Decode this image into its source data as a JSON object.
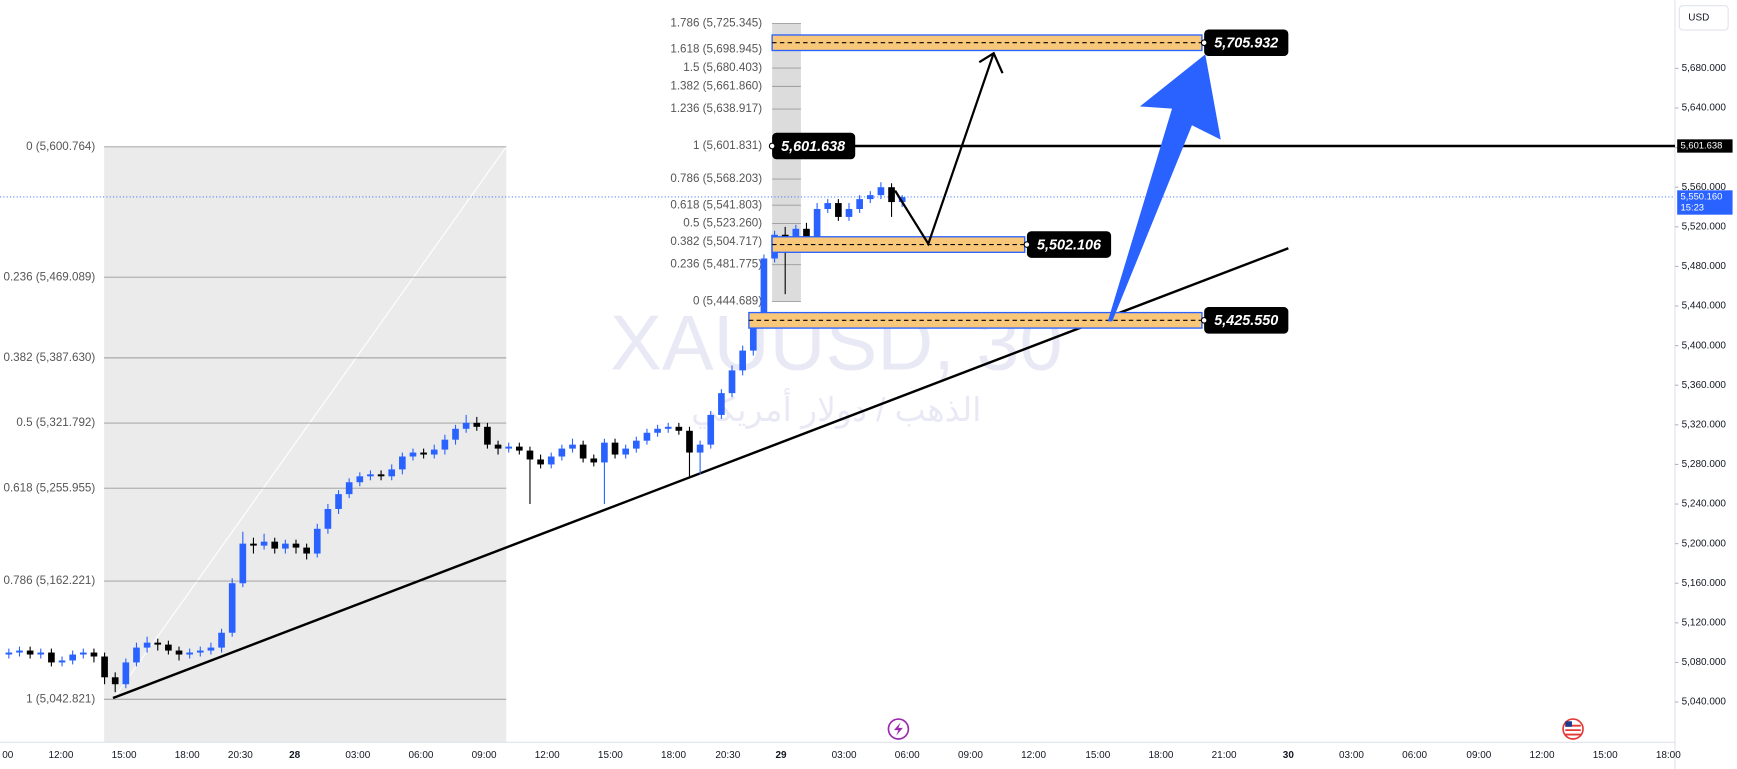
{
  "chart_data": {
    "type": "candlestick",
    "symbol_watermark": "XAUUSD, 30",
    "description_watermark": "الذهب / دولار أمريكي",
    "currency": "USD",
    "colors": {
      "up": "#2962ff",
      "down": "#000000",
      "level_fill": "#f9c77a",
      "level_border": "#2962ff",
      "arrow": "#2962ff"
    },
    "ylim": [
      5000,
      5749
    ],
    "yticks": [
      {
        "value": 5040,
        "label": "5,040.000"
      },
      {
        "value": 5080,
        "label": "5,080.000"
      },
      {
        "value": 5120,
        "label": "5,120.000"
      },
      {
        "value": 5160,
        "label": "5,160.000"
      },
      {
        "value": 5200,
        "label": "5,200.000"
      },
      {
        "value": 5240,
        "label": "5,240.000"
      },
      {
        "value": 5280,
        "label": "5,280.000"
      },
      {
        "value": 5320,
        "label": "5,320.000"
      },
      {
        "value": 5360,
        "label": "5,360.000"
      },
      {
        "value": 5400,
        "label": "5,400.000"
      },
      {
        "value": 5440,
        "label": "5,440.000"
      },
      {
        "value": 5480,
        "label": "5,480.000"
      },
      {
        "value": 5520,
        "label": "5,520.000"
      },
      {
        "value": 5560,
        "label": "5,560.000"
      },
      {
        "value": 5600,
        "label": "5,600.000"
      },
      {
        "value": 5640,
        "label": "5,640.000"
      },
      {
        "value": 5680,
        "label": "5,680.000"
      }
    ],
    "x_tick_labels": [
      "00",
      "12:00",
      "15:00",
      "18:00",
      "20:30",
      "28",
      "03:00",
      "06:00",
      "09:00",
      "12:00",
      "15:00",
      "18:00",
      "20:30",
      "29",
      "03:00",
      "06:00",
      "09:00",
      "12:00",
      "15:00",
      "18:00",
      "21:00",
      "30",
      "03:00",
      "06:00",
      "09:00",
      "12:00",
      "15:00",
      "18:00"
    ],
    "candles": [
      [
        5088,
        5094,
        5084,
        5090
      ],
      [
        5090,
        5096,
        5086,
        5092
      ],
      [
        5092,
        5096,
        5084,
        5088
      ],
      [
        5088,
        5094,
        5084,
        5090
      ],
      [
        5090,
        5094,
        5076,
        5080
      ],
      [
        5080,
        5086,
        5076,
        5082
      ],
      [
        5082,
        5092,
        5078,
        5088
      ],
      [
        5088,
        5094,
        5084,
        5090
      ],
      [
        5090,
        5094,
        5080,
        5086
      ],
      [
        5086,
        5090,
        5058,
        5065
      ],
      [
        5065,
        5070,
        5050,
        5058
      ],
      [
        5058,
        5084,
        5054,
        5080
      ],
      [
        5080,
        5100,
        5076,
        5095
      ],
      [
        5095,
        5106,
        5090,
        5100
      ],
      [
        5100,
        5104,
        5092,
        5098
      ],
      [
        5098,
        5102,
        5088,
        5092
      ],
      [
        5092,
        5096,
        5082,
        5088
      ],
      [
        5088,
        5094,
        5084,
        5090
      ],
      [
        5090,
        5096,
        5086,
        5092
      ],
      [
        5092,
        5100,
        5088,
        5095
      ],
      [
        5095,
        5114,
        5090,
        5110
      ],
      [
        5110,
        5165,
        5106,
        5160
      ],
      [
        5160,
        5212,
        5156,
        5200
      ],
      [
        5200,
        5206,
        5190,
        5198
      ],
      [
        5198,
        5210,
        5194,
        5202
      ],
      [
        5202,
        5206,
        5190,
        5195
      ],
      [
        5195,
        5204,
        5190,
        5200
      ],
      [
        5200,
        5204,
        5190,
        5196
      ],
      [
        5196,
        5200,
        5184,
        5190
      ],
      [
        5190,
        5220,
        5186,
        5215
      ],
      [
        5215,
        5240,
        5210,
        5235
      ],
      [
        5235,
        5254,
        5230,
        5250
      ],
      [
        5250,
        5266,
        5246,
        5262
      ],
      [
        5262,
        5272,
        5258,
        5268
      ],
      [
        5268,
        5274,
        5264,
        5270
      ],
      [
        5270,
        5274,
        5264,
        5268
      ],
      [
        5268,
        5280,
        5264,
        5275
      ],
      [
        5275,
        5292,
        5270,
        5288
      ],
      [
        5288,
        5296,
        5284,
        5292
      ],
      [
        5292,
        5296,
        5286,
        5290
      ],
      [
        5290,
        5300,
        5286,
        5295
      ],
      [
        5295,
        5310,
        5290,
        5305
      ],
      [
        5305,
        5320,
        5300,
        5316
      ],
      [
        5316,
        5330,
        5312,
        5322
      ],
      [
        5322,
        5328,
        5314,
        5318
      ],
      [
        5318,
        5322,
        5296,
        5300
      ],
      [
        5300,
        5304,
        5290,
        5296
      ],
      [
        5296,
        5302,
        5292,
        5298
      ],
      [
        5298,
        5302,
        5290,
        5294
      ],
      [
        5294,
        5298,
        5240,
        5285
      ],
      [
        5285,
        5290,
        5276,
        5280
      ],
      [
        5280,
        5292,
        5276,
        5288
      ],
      [
        5288,
        5300,
        5284,
        5296
      ],
      [
        5296,
        5306,
        5292,
        5300
      ],
      [
        5300,
        5304,
        5282,
        5286
      ],
      [
        5286,
        5290,
        5278,
        5282
      ],
      [
        5282,
        5306,
        5240,
        5302
      ],
      [
        5302,
        5306,
        5286,
        5290
      ],
      [
        5290,
        5300,
        5286,
        5296
      ],
      [
        5296,
        5308,
        5292,
        5304
      ],
      [
        5304,
        5316,
        5300,
        5312
      ],
      [
        5312,
        5320,
        5308,
        5316
      ],
      [
        5316,
        5322,
        5312,
        5318
      ],
      [
        5318,
        5322,
        5310,
        5314
      ],
      [
        5314,
        5318,
        5268,
        5292
      ],
      [
        5292,
        5304,
        5270,
        5300
      ],
      [
        5300,
        5334,
        5296,
        5330
      ],
      [
        5330,
        5356,
        5326,
        5352
      ],
      [
        5352,
        5380,
        5348,
        5375
      ],
      [
        5375,
        5400,
        5370,
        5395
      ],
      [
        5395,
        5434,
        5390,
        5430
      ],
      [
        5430,
        5492,
        5426,
        5488
      ],
      [
        5488,
        5516,
        5484,
        5512
      ],
      [
        5512,
        5520,
        5452,
        5500
      ],
      [
        5500,
        5522,
        5496,
        5518
      ],
      [
        5518,
        5524,
        5506,
        5510
      ],
      [
        5510,
        5544,
        5506,
        5538
      ],
      [
        5538,
        5548,
        5534,
        5544
      ],
      [
        5544,
        5548,
        5526,
        5530
      ],
      [
        5530,
        5544,
        5526,
        5538
      ],
      [
        5538,
        5552,
        5534,
        5548
      ],
      [
        5548,
        5556,
        5544,
        5552
      ],
      [
        5552,
        5565,
        5548,
        5560
      ],
      [
        5560,
        5564,
        5530,
        5545
      ],
      [
        5545,
        5552,
        5540,
        5550
      ]
    ],
    "current_price": {
      "value": 5550.16,
      "label": "5,550.160"
    },
    "countdown": "15:23",
    "horizontal_line": {
      "value": 5601.638,
      "label": "5,601.638"
    },
    "levels": [
      {
        "value": 5705.932,
        "label": "5,705.932"
      },
      {
        "value": 5502.106,
        "label": "5,502.106"
      },
      {
        "value": 5425.55,
        "label": "5,425.550"
      }
    ],
    "fib_left": [
      {
        "value": 5600.764,
        "label": "0 (5,600.764)"
      },
      {
        "value": 5469.089,
        "label": "0.236 (5,469.089)"
      },
      {
        "value": 5387.63,
        "label": "0.382 (5,387.630)"
      },
      {
        "value": 5321.792,
        "label": "0.5 (5,321.792)"
      },
      {
        "value": 5255.955,
        "label": "0.618 (5,255.955)"
      },
      {
        "value": 5162.221,
        "label": "0.786 (5,162.221)"
      },
      {
        "value": 5042.821,
        "label": "1 (5,042.821)"
      }
    ],
    "fib_right": [
      {
        "value": 5725.345,
        "label": "1.786 (5,725.345)"
      },
      {
        "value": 5698.945,
        "label": "1.618 (5,698.945)"
      },
      {
        "value": 5680.403,
        "label": "1.5 (5,680.403)"
      },
      {
        "value": 5661.86,
        "label": "1.382 (5,661.860)"
      },
      {
        "value": 5638.917,
        "label": "1.236 (5,638.917)"
      },
      {
        "value": 5601.831,
        "label": "1 (5,601.831)"
      },
      {
        "value": 5568.203,
        "label": "0.786 (5,568.203)"
      },
      {
        "value": 5541.803,
        "label": "0.618 (5,541.803)"
      },
      {
        "value": 5523.26,
        "label": "0.5 (5,523.260)"
      },
      {
        "value": 5504.717,
        "label": "0.382 (5,504.717)"
      },
      {
        "value": 5481.775,
        "label": "0.236 (5,481.775)"
      },
      {
        "value": 5444.689,
        "label": "0 (5,444.689)"
      }
    ]
  }
}
